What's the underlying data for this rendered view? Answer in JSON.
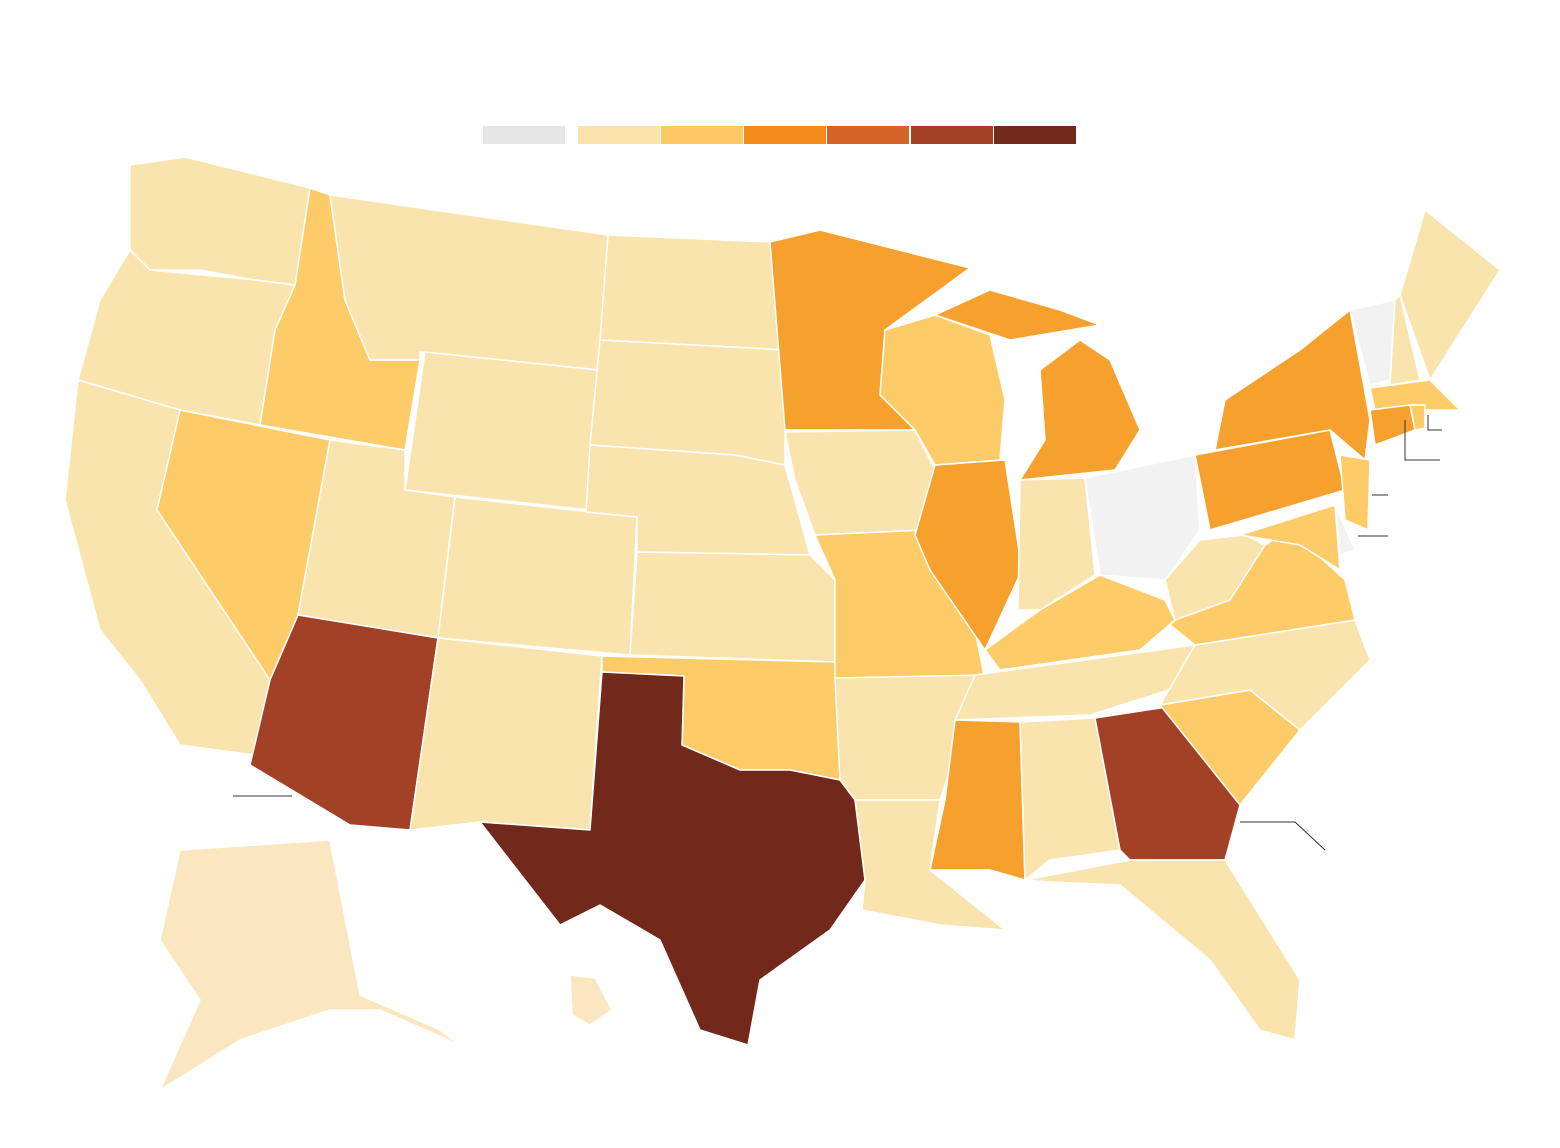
{
  "legend": {
    "colors": [
      "#e6e6e6",
      "#fbe3ae",
      "#fec965",
      "#f48c1c",
      "#d4642a",
      "#a34127",
      "#72281a"
    ]
  },
  "regions": [
    {
      "color": "#fae4ae"
    },
    {
      "color": "#fae4ae"
    },
    {
      "color": "#fae4ae"
    },
    {
      "color": "#fdcc69"
    },
    {
      "color": "#fdcc69"
    },
    {
      "color": "#fae4ae"
    },
    {
      "color": "#fae4ae"
    },
    {
      "color": "#fae4ae"
    },
    {
      "color": "#fae4ae"
    },
    {
      "color": "#a34127"
    },
    {
      "color": "#fae4ae"
    },
    {
      "color": "#fae4ae"
    },
    {
      "color": "#fae4ae"
    },
    {
      "color": "#fae4ae"
    },
    {
      "color": "#fae4ae"
    },
    {
      "color": "#fdcc69"
    },
    {
      "color": "#72281a"
    },
    {
      "color": "#f6a12d"
    },
    {
      "color": "#fae4ae"
    },
    {
      "color": "#fdcc69"
    },
    {
      "color": "#fae4ae"
    },
    {
      "color": "#fae4ae"
    },
    {
      "color": "#fdcc69"
    },
    {
      "color": "#f6a12d"
    },
    {
      "color": "#f6a12d"
    },
    {
      "color": "#f6a12d"
    },
    {
      "color": "#fae4ae"
    },
    {
      "color": "#f2f2f2"
    },
    {
      "color": "#fdcc69"
    },
    {
      "color": "#fae4ae"
    },
    {
      "color": "#f6a12d"
    },
    {
      "color": "#fae4ae"
    },
    {
      "color": "#a34127"
    },
    {
      "color": "#fae4ae"
    },
    {
      "color": "#fdcc69"
    },
    {
      "color": "#fae4ae"
    },
    {
      "color": "#fdcc69"
    },
    {
      "color": "#fae4ae"
    },
    {
      "color": "#f6a12d"
    },
    {
      "color": "#f6a12d"
    },
    {
      "color": "#f2f2f2"
    },
    {
      "color": "#fae4ae"
    },
    {
      "color": "#fae4ae"
    },
    {
      "color": "#fdcc69"
    },
    {
      "color": "#f6a12d"
    },
    {
      "color": "#fdcc69"
    },
    {
      "color": "#fdcc69"
    },
    {
      "color": "#f2f2f2"
    },
    {
      "color": "#fdcc69"
    },
    {
      "color": "#fae7c0"
    },
    {
      "color": "#fae7c0"
    }
  ]
}
